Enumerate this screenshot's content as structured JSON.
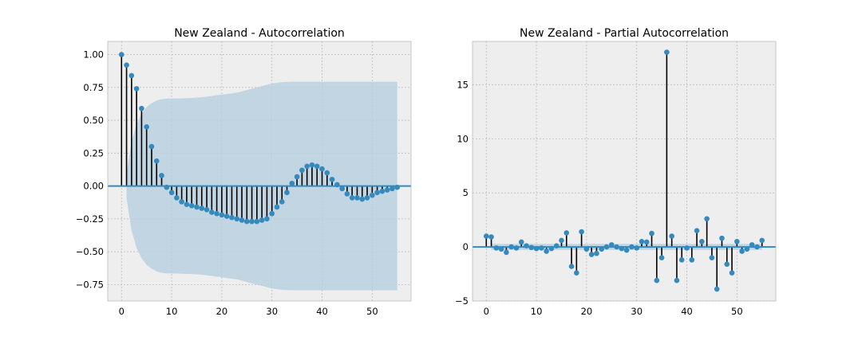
{
  "chart_data": [
    {
      "type": "stem",
      "title": "New Zealand - Autocorrelation",
      "xlabel": "",
      "ylabel": "",
      "xlim": [
        -2.75,
        57.75
      ],
      "ylim": [
        -0.875,
        1.1
      ],
      "xticks": [
        0,
        10,
        20,
        30,
        40,
        50
      ],
      "yticks": [
        -0.75,
        -0.5,
        -0.25,
        0.0,
        0.25,
        0.5,
        0.75,
        1.0
      ],
      "ytick_labels": [
        "−0.75",
        "−0.50",
        "−0.25",
        "0.00",
        "0.25",
        "0.50",
        "0.75",
        "1.00"
      ],
      "grid": true,
      "lags": [
        0,
        1,
        2,
        3,
        4,
        5,
        6,
        7,
        8,
        9,
        10,
        11,
        12,
        13,
        14,
        15,
        16,
        17,
        18,
        19,
        20,
        21,
        22,
        23,
        24,
        25,
        26,
        27,
        28,
        29,
        30,
        31,
        32,
        33,
        34,
        35,
        36,
        37,
        38,
        39,
        40,
        41,
        42,
        43,
        44,
        45,
        46,
        47,
        48,
        49,
        50,
        51,
        52,
        53,
        54,
        55
      ],
      "values": [
        1.0,
        0.92,
        0.84,
        0.74,
        0.59,
        0.45,
        0.3,
        0.19,
        0.08,
        -0.01,
        -0.05,
        -0.09,
        -0.12,
        -0.14,
        -0.15,
        -0.16,
        -0.17,
        -0.18,
        -0.2,
        -0.21,
        -0.22,
        -0.23,
        -0.24,
        -0.25,
        -0.26,
        -0.27,
        -0.27,
        -0.27,
        -0.26,
        -0.25,
        -0.21,
        -0.16,
        -0.12,
        -0.05,
        0.02,
        0.07,
        0.12,
        0.15,
        0.16,
        0.15,
        0.13,
        0.1,
        0.05,
        0.01,
        -0.02,
        -0.06,
        -0.09,
        -0.09,
        -0.1,
        -0.09,
        -0.07,
        -0.05,
        -0.04,
        -0.03,
        -0.02,
        -0.01
      ],
      "confint_upper": [
        null,
        0.09,
        0.34,
        0.47,
        0.55,
        0.6,
        0.63,
        0.65,
        0.66,
        0.665,
        0.665,
        0.666,
        0.667,
        0.668,
        0.67,
        0.672,
        0.675,
        0.68,
        0.685,
        0.69,
        0.695,
        0.7,
        0.705,
        0.71,
        0.72,
        0.73,
        0.74,
        0.75,
        0.76,
        0.77,
        0.78,
        0.785,
        0.79,
        0.792,
        0.793,
        0.793,
        0.793,
        0.793,
        0.793,
        0.793,
        0.793,
        0.793,
        0.793,
        0.793,
        0.793,
        0.793,
        0.793,
        0.793,
        0.793,
        0.793,
        0.793,
        0.793,
        0.793,
        0.793,
        0.793,
        0.793
      ],
      "colors": {
        "marker": "#348abd",
        "stem": "#000000",
        "baseline": "#348abd",
        "band": "#b8d0e0",
        "axes_bg": "#eeeeee",
        "grid": "#bcbcbc"
      }
    },
    {
      "type": "stem",
      "title": "New Zealand - Partial Autocorrelation",
      "xlabel": "",
      "ylabel": "",
      "xlim": [
        -2.75,
        57.75
      ],
      "ylim": [
        -5.0,
        19.0
      ],
      "xticks": [
        0,
        10,
        20,
        30,
        40,
        50
      ],
      "yticks": [
        -5,
        0,
        5,
        10,
        15
      ],
      "ytick_labels": [
        "−5",
        "0",
        "5",
        "10",
        "15"
      ],
      "grid": true,
      "lags": [
        0,
        1,
        2,
        3,
        4,
        5,
        6,
        7,
        8,
        9,
        10,
        11,
        12,
        13,
        14,
        15,
        16,
        17,
        18,
        19,
        20,
        21,
        22,
        23,
        24,
        25,
        26,
        27,
        28,
        29,
        30,
        31,
        32,
        33,
        34,
        35,
        36,
        37,
        38,
        39,
        40,
        41,
        42,
        43,
        44,
        45,
        46,
        47,
        48,
        49,
        50,
        51,
        52,
        53,
        54,
        55
      ],
      "values": [
        1.0,
        0.92,
        -0.1,
        -0.2,
        -0.5,
        0.0,
        -0.1,
        0.45,
        0.1,
        -0.05,
        -0.15,
        -0.1,
        -0.4,
        -0.15,
        0.1,
        0.6,
        1.3,
        -1.8,
        -2.4,
        1.4,
        -0.2,
        -0.7,
        -0.6,
        -0.2,
        0.0,
        0.2,
        0.0,
        -0.15,
        -0.3,
        0.0,
        -0.1,
        0.5,
        0.45,
        1.25,
        -3.1,
        -1.0,
        18.0,
        1.0,
        -3.1,
        -1.2,
        -0.1,
        -1.2,
        1.5,
        0.5,
        2.6,
        -1.0,
        -3.9,
        0.8,
        -1.6,
        -2.4,
        0.5,
        -0.4,
        -0.2,
        0.2,
        0.0,
        0.6
      ],
      "confint_halfwidth": 0.28,
      "colors": {
        "marker": "#348abd",
        "stem": "#000000",
        "baseline": "#348abd",
        "band": "#b8d0e0",
        "axes_bg": "#eeeeee",
        "grid": "#bcbcbc"
      }
    }
  ]
}
